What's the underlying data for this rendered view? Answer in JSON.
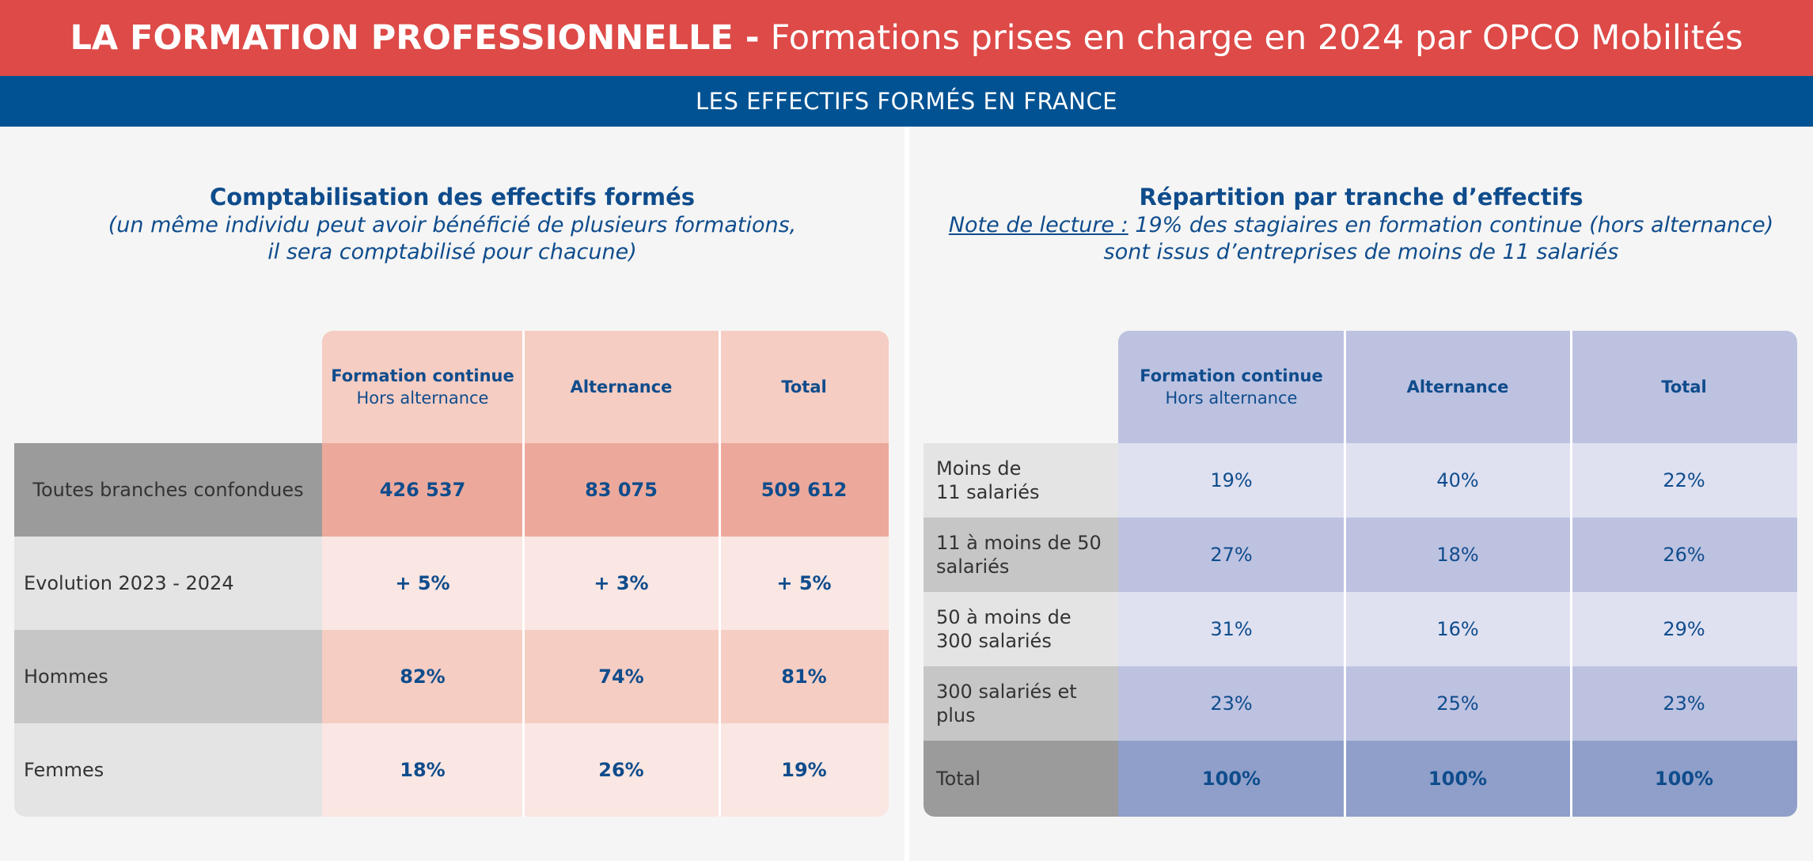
{
  "header": {
    "title_bold": "LA FORMATION PROFESSIONNELLE -",
    "title_light": "Formations prises en charge en 2024 par OPCO Mobilités"
  },
  "subheader": "LES EFFECTIFS FORMÉS EN FRANCE",
  "colors": {
    "header_red": "#dd4a47",
    "banner_blue": "#005293",
    "text_blue": "#0f4c8c",
    "salmon_header": "#f5cdc3",
    "salmon_dark": "#eca99b",
    "salmon_light": "#fae6e2",
    "lavender_light": "#dfe1f1",
    "lavender_mid": "#bdc2e1",
    "lavender_dark": "#8f9fc9"
  },
  "left": {
    "title": "Comptabilisation des effectifs formés",
    "subtitle_line1": "(un même individu peut avoir bénéficié de plusieurs formations,",
    "subtitle_line2": "il sera comptabilisé pour chacune)",
    "columns": [
      {
        "title": "Formation continue",
        "subtitle": "Hors alternance"
      },
      {
        "title": "Alternance",
        "subtitle": ""
      },
      {
        "title": "Total",
        "subtitle": ""
      }
    ],
    "rows": [
      {
        "label": "Toutes branches confondues",
        "values": [
          "426 537",
          "83 075",
          "509 612"
        ]
      },
      {
        "label": "Evolution 2023 - 2024",
        "values": [
          "+ 5%",
          "+ 3%",
          "+ 5%"
        ]
      },
      {
        "label": "Hommes",
        "values": [
          "82%",
          "74%",
          "81%"
        ]
      },
      {
        "label": "Femmes",
        "values": [
          "18%",
          "26%",
          "19%"
        ]
      }
    ]
  },
  "right": {
    "title": "Répartition par tranche d’effectifs",
    "note_label": "Note de lecture :",
    "note_line1": " 19% des stagiaires en formation continue (hors alternance)",
    "note_line2": "sont issus d’entreprises de moins de 11 salariés",
    "columns": [
      {
        "title": "Formation continue",
        "subtitle": "Hors alternance"
      },
      {
        "title": "Alternance",
        "subtitle": ""
      },
      {
        "title": "Total",
        "subtitle": ""
      }
    ],
    "rows": [
      {
        "label_line1": "Moins de",
        "label_line2": "11 salariés",
        "values": [
          "19%",
          "40%",
          "22%"
        ]
      },
      {
        "label_line1": "11 à moins de 50",
        "label_line2": "salariés",
        "values": [
          "27%",
          "18%",
          "26%"
        ]
      },
      {
        "label_line1": "50 à moins de",
        "label_line2": "300 salariés",
        "values": [
          "31%",
          "16%",
          "29%"
        ]
      },
      {
        "label_line1": "300 salariés et",
        "label_line2": "plus",
        "values": [
          "23%",
          "25%",
          "23%"
        ]
      },
      {
        "label_line1": "Total",
        "label_line2": "",
        "values": [
          "100%",
          "100%",
          "100%"
        ]
      }
    ]
  }
}
